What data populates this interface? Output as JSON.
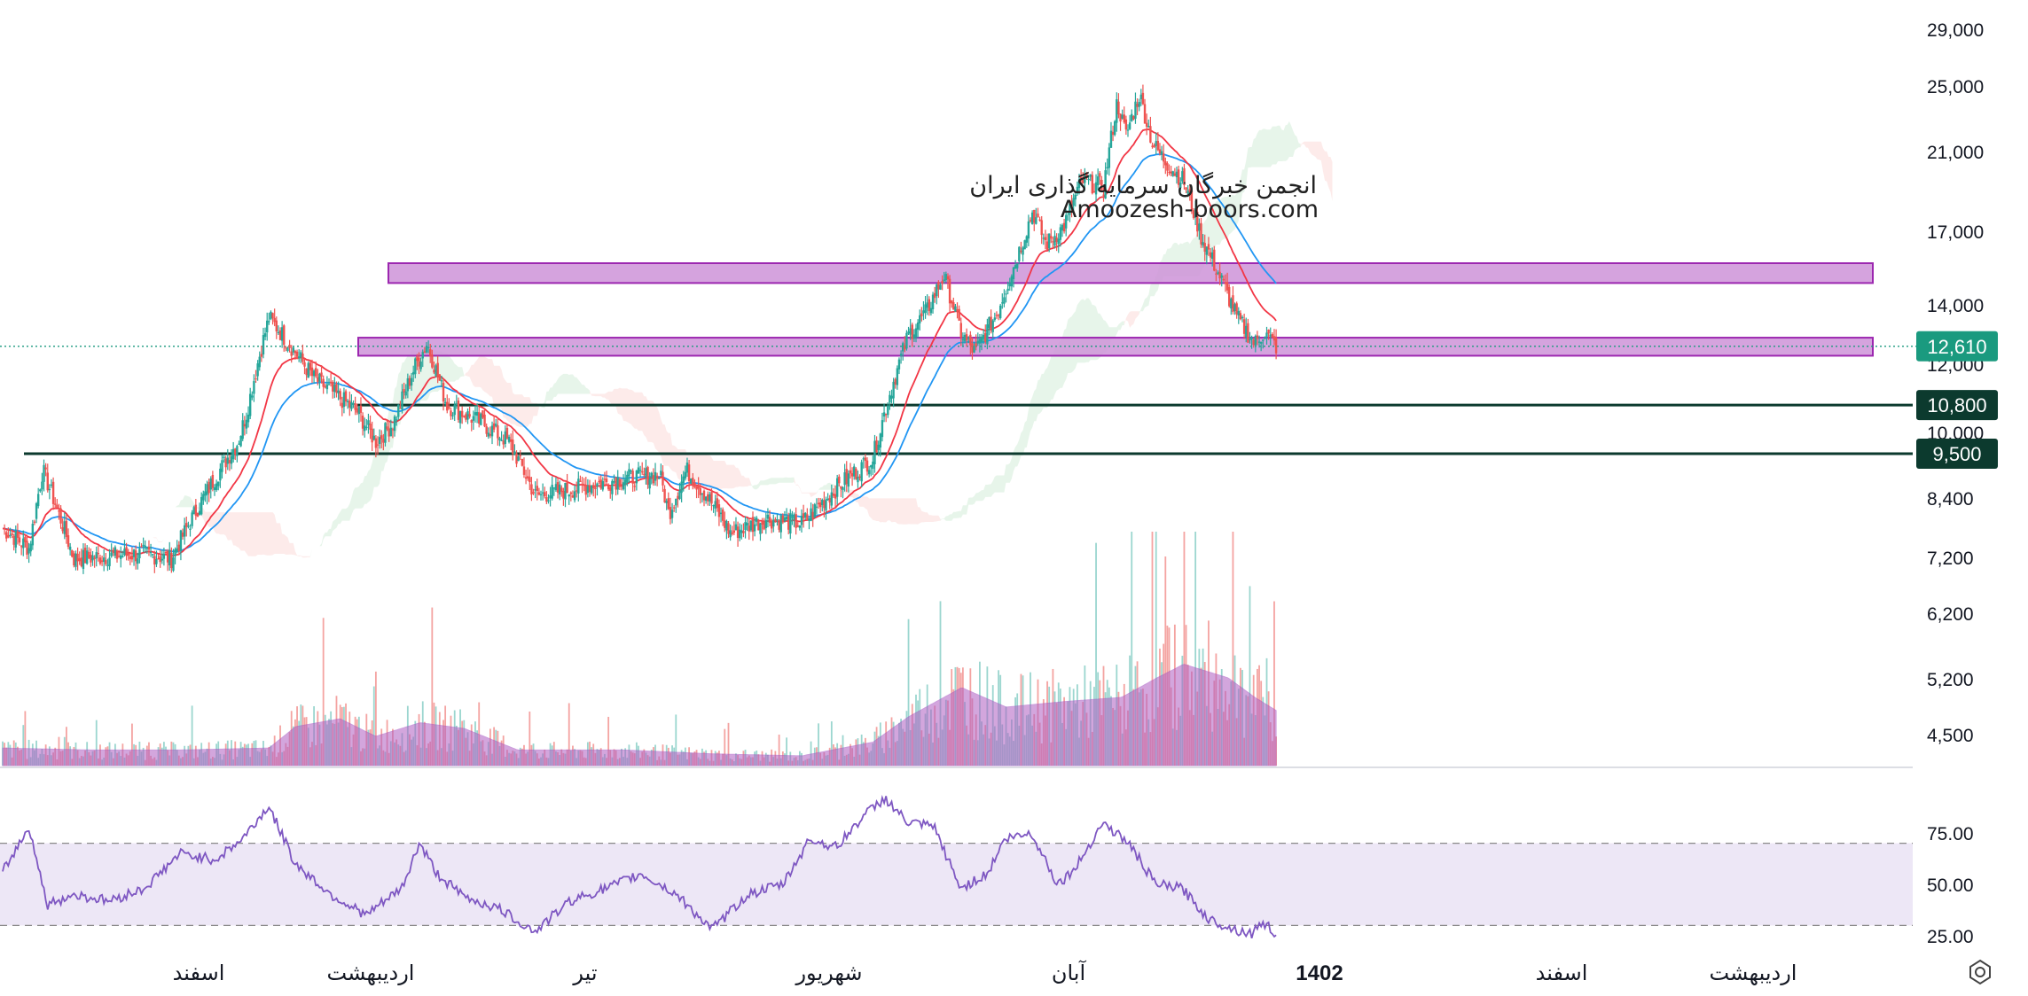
{
  "watermark": {
    "line1": "انجمن خبرگان سرمایه گذاری ایران",
    "line2": "Amoozesh-boors.com"
  },
  "colors": {
    "up": "#26a69a",
    "down": "#ef5350",
    "ema_fast": "#f23645",
    "ema_slow": "#2196f3",
    "zone_fill": "#ce93d8",
    "zone_stroke": "#9c27b0",
    "line_level": "#0c3a2e",
    "rsi": "#7e57c2",
    "rsi_band": "#ede7f6",
    "vol_ma": "#b05fc3",
    "cloud_green": "#e3f3e6",
    "cloud_red": "#fde7e6",
    "price_tag": "#1a9a7f"
  },
  "price_axis_labels": [
    "29,000",
    "25,000",
    "21,000",
    "17,000",
    "14,000",
    "12,000",
    "10,000",
    "8,400",
    "7,200",
    "6,200",
    "5,200",
    "4,500"
  ],
  "rsi_axis_labels": [
    "75.00",
    "50.00",
    "25.00"
  ],
  "time_axis_labels": [
    "اسفند",
    "اردیبهشت",
    "تیر",
    "شهریور",
    "آبان",
    "1402",
    "اسفند",
    "اردیبهشت"
  ],
  "price_tags": {
    "last": "12,610",
    "level_1": "10,800",
    "level_2": "9,500"
  },
  "chart_data": {
    "type": "candlestick",
    "scale": "log",
    "ylim": [
      4200,
      29500
    ],
    "last_price": 12610,
    "support_resistance_lines": [
      10800,
      9500
    ],
    "zones": [
      {
        "name": "upper-zone",
        "range": [
          14900,
          15700
        ]
      },
      {
        "name": "lower-zone",
        "range": [
          12300,
          12900
        ]
      }
    ],
    "close_path": [
      [
        0,
        7800
      ],
      [
        30,
        7400
      ],
      [
        45,
        9100
      ],
      [
        80,
        7200
      ],
      [
        160,
        7300
      ],
      [
        190,
        7200
      ],
      [
        230,
        8600
      ],
      [
        265,
        9800
      ],
      [
        275,
        10600
      ],
      [
        285,
        11800
      ],
      [
        300,
        13600
      ],
      [
        320,
        12800
      ],
      [
        350,
        11600
      ],
      [
        400,
        10600
      ],
      [
        420,
        9800
      ],
      [
        440,
        10300
      ],
      [
        465,
        12000
      ],
      [
        478,
        12700
      ],
      [
        500,
        10800
      ],
      [
        540,
        10300
      ],
      [
        570,
        9800
      ],
      [
        600,
        8500
      ],
      [
        640,
        8650
      ],
      [
        700,
        8900
      ],
      [
        740,
        9000
      ],
      [
        750,
        8100
      ],
      [
        770,
        9100
      ],
      [
        800,
        8300
      ],
      [
        820,
        7700
      ],
      [
        860,
        8000
      ],
      [
        900,
        7900
      ],
      [
        940,
        8700
      ],
      [
        980,
        9400
      ],
      [
        1000,
        11200
      ],
      [
        1020,
        13000
      ],
      [
        1040,
        13800
      ],
      [
        1060,
        15200
      ],
      [
        1080,
        13000
      ],
      [
        1095,
        12400
      ],
      [
        1120,
        13800
      ],
      [
        1140,
        15700
      ],
      [
        1160,
        18000
      ],
      [
        1175,
        16500
      ],
      [
        1195,
        17300
      ],
      [
        1215,
        19500
      ],
      [
        1240,
        19200
      ],
      [
        1255,
        24000
      ],
      [
        1265,
        22000
      ],
      [
        1280,
        24500
      ],
      [
        1295,
        21500
      ],
      [
        1310,
        20500
      ],
      [
        1330,
        19500
      ],
      [
        1350,
        16800
      ],
      [
        1370,
        15200
      ],
      [
        1390,
        13600
      ],
      [
        1410,
        12700
      ],
      [
        1420,
        13100
      ],
      [
        1434,
        12610
      ]
    ],
    "volume_ma_path": [
      [
        0,
        0.09
      ],
      [
        100,
        0.08
      ],
      [
        200,
        0.08
      ],
      [
        300,
        0.09
      ],
      [
        330,
        0.2
      ],
      [
        380,
        0.24
      ],
      [
        420,
        0.15
      ],
      [
        470,
        0.22
      ],
      [
        520,
        0.19
      ],
      [
        580,
        0.08
      ],
      [
        700,
        0.08
      ],
      [
        800,
        0.06
      ],
      [
        900,
        0.05
      ],
      [
        980,
        0.12
      ],
      [
        1020,
        0.25
      ],
      [
        1080,
        0.4
      ],
      [
        1130,
        0.3
      ],
      [
        1200,
        0.33
      ],
      [
        1260,
        0.35
      ],
      [
        1300,
        0.45
      ],
      [
        1330,
        0.52
      ],
      [
        1380,
        0.45
      ],
      [
        1410,
        0.35
      ],
      [
        1435,
        0.28
      ]
    ],
    "rsi_series": [
      [
        0,
        56
      ],
      [
        30,
        78
      ],
      [
        50,
        40
      ],
      [
        80,
        45
      ],
      [
        120,
        42
      ],
      [
        160,
        48
      ],
      [
        200,
        65
      ],
      [
        240,
        62
      ],
      [
        270,
        72
      ],
      [
        300,
        88
      ],
      [
        330,
        60
      ],
      [
        370,
        45
      ],
      [
        410,
        35
      ],
      [
        450,
        48
      ],
      [
        470,
        70
      ],
      [
        490,
        55
      ],
      [
        520,
        44
      ],
      [
        560,
        38
      ],
      [
        600,
        27
      ],
      [
        640,
        42
      ],
      [
        680,
        48
      ],
      [
        720,
        55
      ],
      [
        760,
        45
      ],
      [
        800,
        28
      ],
      [
        840,
        45
      ],
      [
        880,
        50
      ],
      [
        910,
        72
      ],
      [
        940,
        68
      ],
      [
        970,
        83
      ],
      [
        995,
        92
      ],
      [
        1020,
        80
      ],
      [
        1050,
        78
      ],
      [
        1080,
        48
      ],
      [
        1110,
        55
      ],
      [
        1130,
        72
      ],
      [
        1160,
        75
      ],
      [
        1190,
        50
      ],
      [
        1210,
        58
      ],
      [
        1240,
        80
      ],
      [
        1270,
        70
      ],
      [
        1300,
        50
      ],
      [
        1330,
        48
      ],
      [
        1360,
        33
      ],
      [
        1390,
        28
      ],
      [
        1410,
        26
      ],
      [
        1420,
        32
      ],
      [
        1436,
        26
      ]
    ]
  }
}
